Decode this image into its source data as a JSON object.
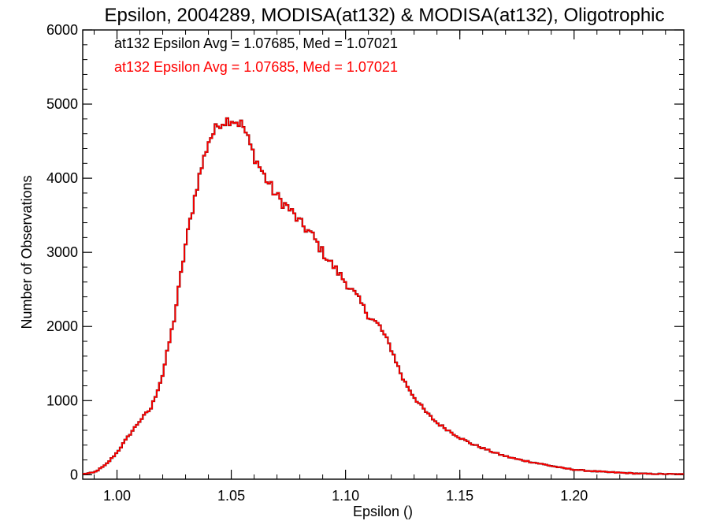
{
  "chart_data": {
    "type": "histogram-step",
    "title": "Epsilon, 2004289, MODISA(at132) & MODISA(at132), Oligotrophic",
    "xlabel": "Epsilon ()",
    "ylabel": "Number of Observations",
    "xlim": [
      0.985,
      1.248
    ],
    "ylim": [
      -60,
      6000
    ],
    "x_ticks": [
      "1.00",
      "1.05",
      "1.10",
      "1.15",
      "1.20"
    ],
    "x_tick_values": [
      1.0,
      1.05,
      1.1,
      1.15,
      1.2
    ],
    "y_ticks": [
      "0",
      "1000",
      "2000",
      "3000",
      "4000",
      "5000",
      "6000"
    ],
    "y_tick_values": [
      0,
      1000,
      2000,
      3000,
      4000,
      5000,
      6000
    ],
    "annotations": [
      {
        "text": "at132 Epsilon Avg = 1.07685, Med = 1.07021",
        "color": "#000000"
      },
      {
        "text": "at132 Epsilon Avg = 1.07685, Med = 1.07021",
        "color": "#ff0000"
      }
    ],
    "series": [
      {
        "color": "#ff0000",
        "overlaps_color": "#000000",
        "x": [
          0.985,
          0.99,
          0.995,
          1.0,
          1.005,
          1.01,
          1.015,
          1.02,
          1.025,
          1.03,
          1.035,
          1.04,
          1.045,
          1.05,
          1.055,
          1.06,
          1.065,
          1.07,
          1.075,
          1.08,
          1.085,
          1.09,
          1.095,
          1.1,
          1.105,
          1.11,
          1.115,
          1.12,
          1.125,
          1.13,
          1.135,
          1.14,
          1.145,
          1.15,
          1.155,
          1.16,
          1.165,
          1.17,
          1.175,
          1.18,
          1.185,
          1.19,
          1.195,
          1.2,
          1.205,
          1.21,
          1.215,
          1.22,
          1.225,
          1.23,
          1.235,
          1.24,
          1.245,
          1.248
        ],
        "values": [
          10,
          30,
          130,
          300,
          520,
          730,
          900,
          1350,
          2100,
          3100,
          3900,
          4500,
          4750,
          4800,
          4720,
          4300,
          4000,
          3750,
          3600,
          3400,
          3250,
          3000,
          2800,
          2600,
          2400,
          2150,
          2000,
          1700,
          1300,
          1050,
          850,
          700,
          600,
          500,
          420,
          360,
          300,
          250,
          210,
          180,
          150,
          120,
          90,
          70,
          55,
          45,
          35,
          28,
          20,
          15,
          12,
          10,
          8,
          6
        ]
      }
    ]
  }
}
